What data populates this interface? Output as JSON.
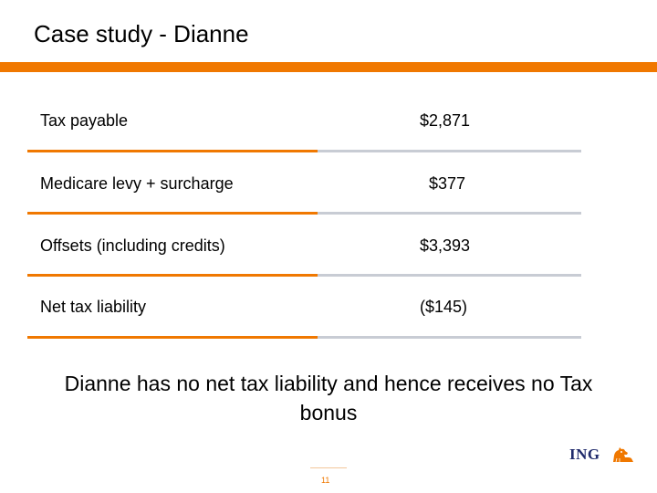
{
  "slide": {
    "title": "Case study - Dianne",
    "rows": [
      {
        "label": "Tax payable",
        "value": "$2,871"
      },
      {
        "label": "Medicare levy + surcharge",
        "value": "$377"
      },
      {
        "label": "Offsets (including credits)",
        "value": "$3,393"
      },
      {
        "label": "Net tax liability",
        "value": "($145)"
      }
    ],
    "conclusion": "Dianne has no net tax liability and hence receives no Tax bonus",
    "page_number": "11",
    "logo_text": "ING"
  },
  "colors": {
    "accent": "#f07800",
    "rule_grey": "#c8ccd4",
    "logo_navy": "#1f2a6b"
  },
  "icons": {
    "logo": "ing-lion-logo-icon"
  }
}
